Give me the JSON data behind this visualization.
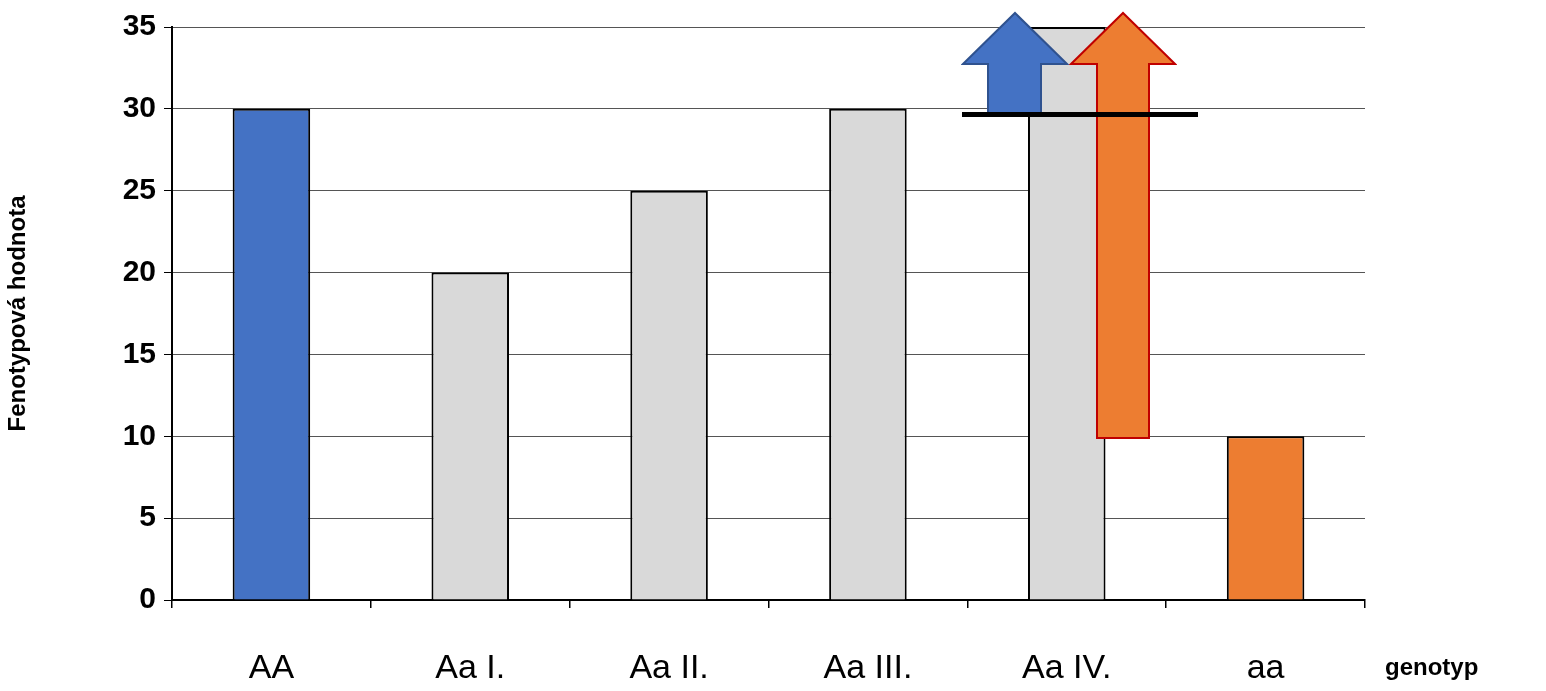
{
  "chart_data": {
    "type": "bar",
    "xlabel": "genotyp",
    "ylabel": "Fenotypová hodnota",
    "categories": [
      "AA",
      "Aa I.",
      "Aa II.",
      "Aa III.",
      "Aa IV.",
      "aa"
    ],
    "values": [
      30,
      20,
      25,
      30,
      35,
      10
    ],
    "colors": [
      "#4472c4",
      "#d9d9d9",
      "#d9d9d9",
      "#d9d9d9",
      "#d9d9d9",
      "#ed7d31"
    ],
    "ylim": [
      0,
      35
    ],
    "yticks": [
      0,
      5,
      10,
      15,
      20,
      25,
      30,
      35
    ],
    "grid": "y",
    "legend": false
  }
}
